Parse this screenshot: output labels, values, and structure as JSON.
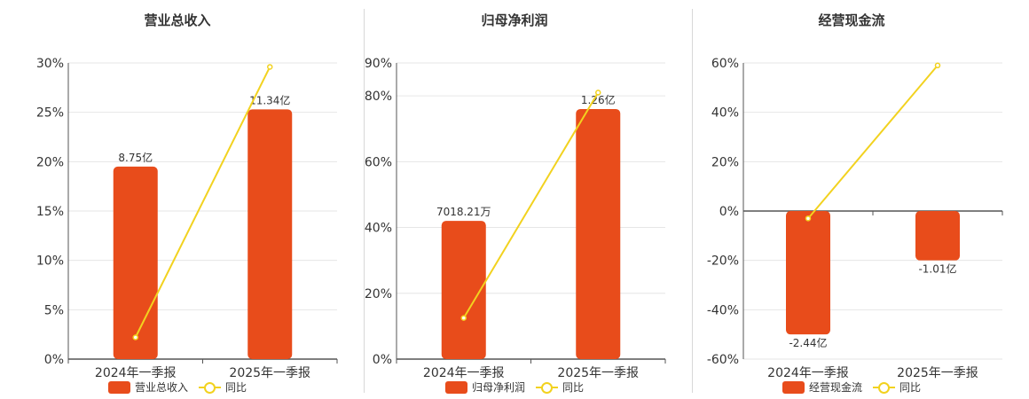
{
  "colors": {
    "bar": "#E84C1B",
    "line": "#F2D21F",
    "grid": "#e6e6e6",
    "axis": "#555555"
  },
  "panels": [
    {
      "title": "营业总收入",
      "legend": {
        "bar": "营业总收入",
        "line": "同比"
      }
    },
    {
      "title": "归母净利润",
      "legend": {
        "bar": "归母净利润",
        "line": "同比"
      }
    },
    {
      "title": "经营现金流",
      "legend": {
        "bar": "经营现金流",
        "line": "同比"
      }
    }
  ],
  "chart_data": [
    {
      "type": "bar",
      "title": "营业总收入",
      "categories": [
        "2024年一季报",
        "2025年一季报"
      ],
      "ylim": [
        0,
        30
      ],
      "yticks": [
        "0%",
        "5%",
        "10%",
        "15%",
        "20%",
        "25%",
        "30%"
      ],
      "series": [
        {
          "name": "营业总收入",
          "type": "bar",
          "values": [
            19.5,
            25.3
          ],
          "labels": [
            "8.75亿",
            "11.34亿"
          ]
        },
        {
          "name": "同比",
          "type": "line",
          "values": [
            2.2,
            29.6
          ]
        }
      ],
      "grid": true,
      "legend": "bottom"
    },
    {
      "type": "bar",
      "title": "归母净利润",
      "categories": [
        "2024年一季报",
        "2025年一季报"
      ],
      "ylim": [
        0,
        90
      ],
      "yticks": [
        "0%",
        "20%",
        "40%",
        "60%",
        "80%",
        "90%"
      ],
      "series": [
        {
          "name": "归母净利润",
          "type": "bar",
          "values": [
            42,
            76
          ],
          "labels": [
            "7018.21万",
            "1.26亿"
          ]
        },
        {
          "name": "同比",
          "type": "line",
          "values": [
            12.5,
            81
          ]
        }
      ],
      "grid": true,
      "legend": "bottom"
    },
    {
      "type": "bar",
      "title": "经营现金流",
      "categories": [
        "2024年一季报",
        "2025年一季报"
      ],
      "ylim": [
        -60,
        60
      ],
      "yticks": [
        "-60%",
        "-40%",
        "-20%",
        "0%",
        "20%",
        "40%",
        "60%"
      ],
      "series": [
        {
          "name": "经营现金流",
          "type": "bar",
          "values": [
            -50,
            -20
          ],
          "labels": [
            "-2.44亿",
            "-1.01亿"
          ]
        },
        {
          "name": "同比",
          "type": "line",
          "values": [
            -3,
            59
          ]
        }
      ],
      "grid": true,
      "legend": "bottom"
    }
  ]
}
